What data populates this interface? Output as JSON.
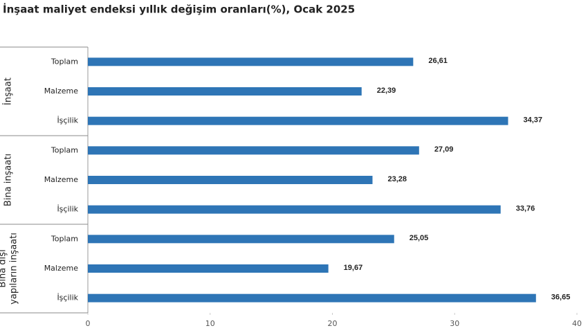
{
  "chart_data": {
    "type": "bar",
    "orientation": "horizontal",
    "title": "İnşaat maliyet endeksi yıllık değişim oranları(%), Ocak 2025",
    "color": "#2e75b6",
    "xlim": [
      0,
      40
    ],
    "xticks": [
      0,
      10,
      20,
      30,
      40
    ],
    "groups": [
      {
        "name": [
          "İnşaat"
        ],
        "categories": [
          "Toplam",
          "Malzeme",
          "İşçilik"
        ],
        "values": [
          26.61,
          22.39,
          34.37
        ],
        "value_labels": [
          "26,61",
          "22,39",
          "34,37"
        ]
      },
      {
        "name": [
          "Bina inşaatı"
        ],
        "categories": [
          "Toplam",
          "Malzeme",
          "İşçilik"
        ],
        "values": [
          27.09,
          23.28,
          33.76
        ],
        "value_labels": [
          "27,09",
          "23,28",
          "33,76"
        ]
      },
      {
        "name": [
          "Bina dışı",
          "yapıların inşaatı"
        ],
        "categories": [
          "Toplam",
          "Malzeme",
          "İşçilik"
        ],
        "values": [
          25.05,
          19.67,
          36.65
        ],
        "value_labels": [
          "25,05",
          "19,67",
          "36,65"
        ]
      }
    ]
  }
}
